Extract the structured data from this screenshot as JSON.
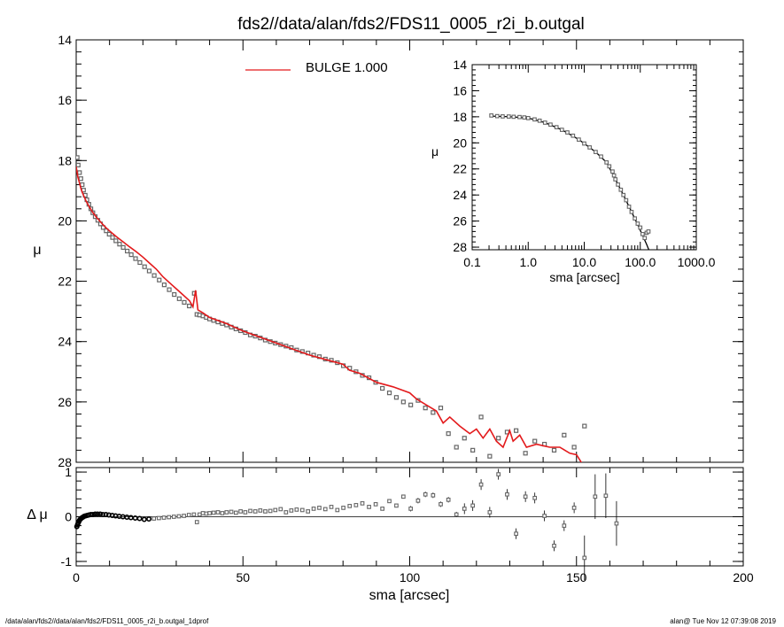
{
  "title": "fds2//data/alan/fds2/FDS11_0005_r2i_b.outgal",
  "footer": {
    "left": "/data/alan/fds2//data/alan/fds2/FDS11_0005_r2i_b.outgal_1dprof",
    "right": "alan@  Tue Nov 12 07:39:08 2019"
  },
  "colors": {
    "model": "#e31a1c",
    "data": "#666666",
    "axis": "#000000"
  },
  "chart_data": [
    {
      "id": "main",
      "type": "scatter",
      "xlim": [
        0,
        200
      ],
      "ylim": [
        28,
        14
      ],
      "ylabel": "μ",
      "y_ticks": [
        "14",
        "16",
        "18",
        "20",
        "22",
        "24",
        "26",
        "28"
      ],
      "legend": {
        "label": "BULGE  1.000",
        "placement": "top-left"
      },
      "series": [
        {
          "name": "data",
          "kind": "points",
          "x": [
            0.3,
            0.6,
            1,
            1.4,
            1.8,
            2.2,
            2.7,
            3.2,
            3.8,
            4.4,
            5,
            5.7,
            6.5,
            7.3,
            8.1,
            9,
            9.9,
            10.9,
            11.9,
            13,
            14.1,
            15.3,
            16.5,
            17.8,
            19.1,
            20.5,
            21.9,
            23.4,
            24.9,
            26.4,
            27.9,
            29.4,
            30.9,
            32.4,
            33.9,
            35.4,
            36.2,
            37,
            38,
            39,
            40,
            41.2,
            42.5,
            43.8,
            45.1,
            46.5,
            47.9,
            49.3,
            50.7,
            52.2,
            53.7,
            55.2,
            56.7,
            58.2,
            59.7,
            61.3,
            62.9,
            64.5,
            66.1,
            67.8,
            69.5,
            71.2,
            72.9,
            74.7,
            76.5,
            78.3,
            80.1,
            82,
            83.9,
            85.8,
            87.8,
            89.8,
            91.8,
            93.9,
            96,
            98.1,
            100.3,
            102.5,
            104.7,
            107,
            109.3,
            111.6,
            114,
            116.4,
            118.9,
            121.4,
            124,
            126.6,
            129.2,
            131.9,
            134.7,
            137.5,
            140.4,
            143.3,
            146.3,
            149.3,
            152.4
          ],
          "y": [
            17.9,
            18.15,
            18.4,
            18.6,
            18.8,
            18.98,
            19.15,
            19.3,
            19.45,
            19.6,
            19.73,
            19.86,
            19.98,
            20.1,
            20.22,
            20.33,
            20.44,
            20.55,
            20.66,
            20.77,
            20.88,
            21,
            21.12,
            21.25,
            21.38,
            21.52,
            21.66,
            21.81,
            21.96,
            22.12,
            22.28,
            22.44,
            22.58,
            22.7,
            22.82,
            22.4,
            23.1,
            23.12,
            23.15,
            23.2,
            23.25,
            23.3,
            23.35,
            23.4,
            23.45,
            23.52,
            23.58,
            23.64,
            23.7,
            23.78,
            23.82,
            23.88,
            23.95,
            24,
            24.05,
            24.1,
            24.15,
            24.2,
            24.28,
            24.33,
            24.38,
            24.45,
            24.5,
            24.58,
            24.62,
            24.7,
            24.8,
            24.88,
            25,
            25.12,
            25.2,
            25.35,
            25.55,
            25.7,
            25.85,
            26,
            26.1,
            25.95,
            26.2,
            26.35,
            26.2,
            27.05,
            27.5,
            27.2,
            27.6,
            26.5,
            27.8,
            27.2,
            27,
            26.95,
            27.7,
            27.3,
            27.4,
            27.6,
            27.1,
            27.5,
            26.8
          ]
        },
        {
          "name": "BULGE  1.000",
          "kind": "line",
          "x": [
            0,
            0.5,
            1,
            1.5,
            2,
            3,
            4,
            5,
            6,
            7,
            8,
            9,
            10,
            12,
            14,
            16,
            18,
            20,
            22,
            24,
            26,
            28,
            30,
            32,
            34,
            35,
            35.8,
            36.5,
            38,
            40,
            45,
            50,
            55,
            60,
            65,
            70,
            75,
            80,
            82,
            85,
            90,
            95,
            100,
            102,
            105,
            108,
            110,
            112,
            115,
            118,
            120,
            122,
            124,
            126,
            128,
            130,
            131,
            133,
            135,
            138,
            140,
            142,
            145,
            148,
            150,
            152,
            155
          ],
          "y": [
            18.2,
            18.55,
            18.75,
            18.95,
            19.1,
            19.35,
            19.55,
            19.72,
            19.87,
            20,
            20.12,
            20.23,
            20.33,
            20.52,
            20.69,
            20.86,
            21.02,
            21.2,
            21.4,
            21.6,
            21.85,
            22.05,
            22.25,
            22.45,
            22.65,
            22.85,
            22.3,
            22.95,
            23.05,
            23.2,
            23.4,
            23.65,
            23.85,
            24.05,
            24.25,
            24.45,
            24.6,
            24.75,
            24.95,
            25.05,
            25.35,
            25.5,
            25.7,
            25.9,
            26.1,
            26.3,
            26.7,
            26.5,
            26.8,
            27.05,
            26.9,
            27.2,
            26.9,
            27.3,
            27.5,
            26.95,
            27.3,
            27.1,
            27.5,
            27.4,
            27.45,
            27.5,
            27.5,
            27.7,
            27.75,
            28.1,
            28.4
          ]
        }
      ]
    },
    {
      "id": "residual",
      "type": "scatter",
      "xlim": [
        0,
        200
      ],
      "ylim": [
        -1.1,
        1.1
      ],
      "xlabel": "sma [arcsec]",
      "ylabel": "Δ μ",
      "x_ticks": [
        "0",
        "50",
        "100",
        "150",
        "200"
      ],
      "y_ticks": [
        "1",
        "0",
        "-1"
      ],
      "series": [
        {
          "name": "residual",
          "kind": "points",
          "x": [
            0.2,
            0.4,
            0.6,
            0.8,
            1,
            1.3,
            1.6,
            2,
            2.4,
            2.8,
            3.3,
            3.8,
            4.4,
            5,
            5.7,
            6.4,
            7.2,
            8,
            8.9,
            9.8,
            10.8,
            11.8,
            12.9,
            14,
            15.2,
            16.4,
            17.7,
            19,
            20.4,
            21.8,
            23.3,
            24.8,
            26.3,
            27.8,
            29.3,
            30.8,
            32.3,
            33.8,
            35.3,
            36.2,
            37,
            38,
            39,
            40,
            41.2,
            42.5,
            43.8,
            45.1,
            46.5,
            47.9,
            49.3,
            50.7,
            52.2,
            53.7,
            55.2,
            56.7,
            58.2,
            59.7,
            61.3,
            62.9,
            64.5,
            66.1,
            67.8,
            69.5,
            71.2,
            72.9,
            74.7,
            76.5,
            78.3,
            80.1,
            82,
            83.9,
            85.8,
            87.8,
            89.8,
            91.8,
            93.9,
            96,
            98.1,
            100.3,
            102.5,
            104.7,
            107,
            109.3,
            111.6,
            114,
            116.4,
            118.9,
            121.4,
            124,
            126.6,
            129.2,
            131.9,
            134.7,
            137.5,
            140.4,
            143.3,
            146.3,
            149.3,
            152.4,
            155.6,
            158.8,
            162
          ],
          "y": [
            -0.22,
            -0.18,
            -0.14,
            -0.11,
            -0.08,
            -0.05,
            -0.03,
            -0.01,
            0.01,
            0.02,
            0.03,
            0.04,
            0.05,
            0.05,
            0.06,
            0.06,
            0.06,
            0.05,
            0.05,
            0.04,
            0.03,
            0.02,
            0.01,
            0,
            -0.01,
            -0.02,
            -0.03,
            -0.04,
            -0.06,
            -0.05,
            -0.04,
            -0.03,
            -0.02,
            -0.01,
            0,
            0.01,
            0.02,
            0.04,
            0.05,
            -0.12,
            0.05,
            0.08,
            0.07,
            0.08,
            0.09,
            0.1,
            0.08,
            0.1,
            0.11,
            0.09,
            0.12,
            0.1,
            0.13,
            0.12,
            0.14,
            0.12,
            0.13,
            0.15,
            0.17,
            0.1,
            0.14,
            0.16,
            0.15,
            0.12,
            0.18,
            0.2,
            0.17,
            0.22,
            0.15,
            0.2,
            0.24,
            0.26,
            0.3,
            0.22,
            0.28,
            0.18,
            0.35,
            0.25,
            0.45,
            0.18,
            0.36,
            0.5,
            0.48,
            0.28,
            0.38,
            0.05,
            0.18,
            0.25,
            0.72,
            0.1,
            0.95,
            0.5,
            -0.38,
            0.45,
            0.42,
            0.02,
            -0.65,
            -0.2,
            0.2,
            -0.92,
            0.45,
            0.47,
            -0.15
          ]
        }
      ]
    },
    {
      "id": "inset",
      "type": "scatter",
      "xscale": "log",
      "xlim": [
        0.1,
        1000
      ],
      "ylim": [
        28.2,
        14
      ],
      "xlabel": "sma [arcsec]",
      "ylabel": "μ",
      "x_ticks": [
        "0.1",
        "1.0",
        "10.0",
        "100.0",
        "1000.0"
      ],
      "y_ticks": [
        "14",
        "16",
        "18",
        "20",
        "22",
        "24",
        "26",
        "28"
      ],
      "series": [
        {
          "name": "data",
          "kind": "points",
          "x": [
            0.22,
            0.28,
            0.35,
            0.45,
            0.55,
            0.7,
            0.85,
            1,
            1.3,
            1.6,
            2,
            2.5,
            3.2,
            4,
            5,
            6.3,
            8,
            10,
            12.5,
            16,
            20,
            25,
            28,
            32,
            34,
            36,
            40,
            45,
            50,
            56,
            63,
            70,
            80,
            90,
            100,
            110,
            120,
            130,
            140
          ],
          "y": [
            17.9,
            17.95,
            17.97,
            17.98,
            18,
            18.02,
            18.05,
            18.1,
            18.2,
            18.3,
            18.45,
            18.6,
            18.8,
            19,
            19.2,
            19.45,
            19.75,
            20.05,
            20.35,
            20.7,
            21.05,
            21.5,
            21.8,
            22.2,
            22.5,
            22.8,
            23.2,
            23.6,
            24,
            24.4,
            24.9,
            25.3,
            25.8,
            26.2,
            26.5,
            27,
            27.3,
            26.9,
            26.8
          ]
        },
        {
          "name": "BULGE  1.000",
          "kind": "line",
          "x": [
            0.22,
            0.5,
            1,
            2,
            4,
            8,
            16,
            25,
            36,
            50,
            70,
            90,
            110,
            130,
            145
          ],
          "y": [
            17.95,
            18,
            18.1,
            18.45,
            19,
            19.75,
            20.7,
            21.5,
            22.8,
            24,
            25.3,
            26.3,
            27.1,
            27.8,
            28.3
          ]
        }
      ]
    }
  ]
}
